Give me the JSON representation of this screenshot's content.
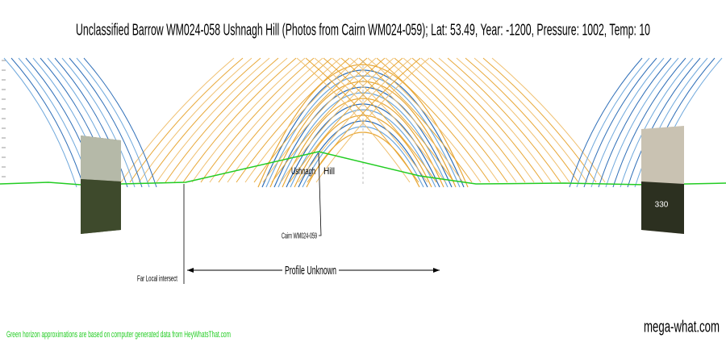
{
  "header": {
    "title": "Unclassified Barrow WM024-058 Ushnagh Hill (Photos from Cairn WM024-059); Lat: 53.49, Year: -1200, Pressure: 1002, Temp: 10"
  },
  "annotations": {
    "hill_left": "Ushnagh",
    "hill_right": "Hill",
    "viewpoint": "Cairn WM024-059",
    "intersect": "Far Local intersect",
    "profile": "Profile Unknown",
    "photo_bearing": "330"
  },
  "footer": {
    "note": "Green horizon approximations are based on computer generated data from HeyWhatsThat.com",
    "site": "mega-what.com"
  }
}
